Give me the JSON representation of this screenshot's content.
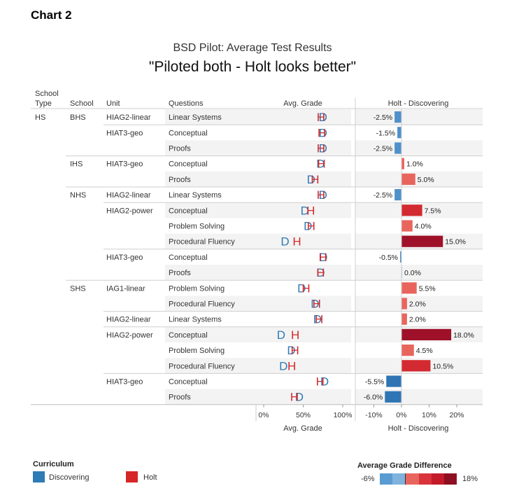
{
  "header": {
    "chart_label": "Chart 2",
    "title": "BSD Pilot: Average Test Results",
    "subtitle": "\"Piloted both - Holt looks better\""
  },
  "columns": {
    "school_type_line1": "School",
    "school_type_line2": "Type",
    "school": "School",
    "unit": "Unit",
    "questions": "Questions",
    "avg_grade": "Avg. Grade",
    "diff": "Holt - Discovering"
  },
  "legend": {
    "curriculum_title": "Curriculum",
    "discovering_label": "Discovering",
    "holt_label": "Holt",
    "discovering_color": "#2e7bb5",
    "holt_color": "#d62728",
    "diff_title": "Average Grade Difference",
    "diff_min_label": "-6%",
    "diff_max_label": "18%"
  },
  "chart_data": {
    "type": "table",
    "marker_letters": {
      "discovering": "D",
      "holt": "H"
    },
    "avg_grade_axis": {
      "ticks": [
        "0%",
        "50%",
        "100%"
      ],
      "range": [
        0,
        100
      ],
      "label": "Avg. Grade"
    },
    "diff_axis": {
      "ticks": [
        "-10%",
        "0%",
        "10%",
        "20%"
      ],
      "range": [
        -12,
        22
      ],
      "label": "Holt - Discovering"
    },
    "rows": [
      {
        "school_type": "HS",
        "school": "BHS",
        "unit": "HIAG2-linear",
        "question": "Linear Systems",
        "discovering": 75,
        "holt": 72.5,
        "diff": -2.5,
        "diff_label": "-2.5%"
      },
      {
        "school_type": "",
        "school": "",
        "unit": "HIAT3-geo",
        "question": "Conceptual",
        "discovering": 75,
        "holt": 73.5,
        "diff": -1.5,
        "diff_label": "-1.5%"
      },
      {
        "school_type": "",
        "school": "",
        "unit": "",
        "question": "Proofs",
        "discovering": 75,
        "holt": 72.5,
        "diff": -2.5,
        "diff_label": "-2.5%"
      },
      {
        "school_type": "",
        "school": "IHS",
        "unit": "HIAT3-geo",
        "question": "Conceptual",
        "discovering": 72,
        "holt": 73,
        "diff": 1.0,
        "diff_label": "1.0%"
      },
      {
        "school_type": "",
        "school": "",
        "unit": "",
        "question": "Proofs",
        "discovering": 60,
        "holt": 65,
        "diff": 5.0,
        "diff_label": "5.0%"
      },
      {
        "school_type": "",
        "school": "NHS",
        "unit": "HIAG2-linear",
        "question": "Linear Systems",
        "discovering": 75,
        "holt": 72.5,
        "diff": -2.5,
        "diff_label": "-2.5%"
      },
      {
        "school_type": "",
        "school": "",
        "unit": "HIAG2-power",
        "question": "Conceptual",
        "discovering": 52,
        "holt": 59.5,
        "diff": 7.5,
        "diff_label": "7.5%"
      },
      {
        "school_type": "",
        "school": "",
        "unit": "",
        "question": "Problem Solving",
        "discovering": 56,
        "holt": 60,
        "diff": 4.0,
        "diff_label": "4.0%"
      },
      {
        "school_type": "",
        "school": "",
        "unit": "",
        "question": "Procedural Fluency",
        "discovering": 27,
        "holt": 42,
        "diff": 15.0,
        "diff_label": "15.0%"
      },
      {
        "school_type": "",
        "school": "",
        "unit": "HIAT3-geo",
        "question": "Conceptual",
        "discovering": 75.5,
        "holt": 75,
        "diff": -0.5,
        "diff_label": "-0.5%"
      },
      {
        "school_type": "",
        "school": "",
        "unit": "",
        "question": "Proofs",
        "discovering": 72,
        "holt": 72,
        "diff": 0.0,
        "diff_label": "0.0%"
      },
      {
        "school_type": "",
        "school": "SHS",
        "unit": "IAG1-linear",
        "question": "Problem Solving",
        "discovering": 48,
        "holt": 53.5,
        "diff": 5.5,
        "diff_label": "5.5%"
      },
      {
        "school_type": "",
        "school": "",
        "unit": "",
        "question": "Procedural Fluency",
        "discovering": 65,
        "holt": 67,
        "diff": 2.0,
        "diff_label": "2.0%"
      },
      {
        "school_type": "",
        "school": "",
        "unit": "HIAG2-linear",
        "question": "Linear Systems",
        "discovering": 68,
        "holt": 70,
        "diff": 2.0,
        "diff_label": "2.0%"
      },
      {
        "school_type": "",
        "school": "",
        "unit": "HIAG2-power",
        "question": "Conceptual",
        "discovering": 22,
        "holt": 40,
        "diff": 18.0,
        "diff_label": "18.0%"
      },
      {
        "school_type": "",
        "school": "",
        "unit": "",
        "question": "Problem Solving",
        "discovering": 35,
        "holt": 39.5,
        "diff": 4.5,
        "diff_label": "4.5%"
      },
      {
        "school_type": "",
        "school": "",
        "unit": "",
        "question": "Procedural Fluency",
        "discovering": 25,
        "holt": 35.5,
        "diff": 10.5,
        "diff_label": "10.5%"
      },
      {
        "school_type": "",
        "school": "",
        "unit": "HIAT3-geo",
        "question": "Conceptual",
        "discovering": 77,
        "holt": 71.5,
        "diff": -5.5,
        "diff_label": "-5.5%"
      },
      {
        "school_type": "",
        "school": "",
        "unit": "",
        "question": "Proofs",
        "discovering": 45,
        "holt": 39,
        "diff": -6.0,
        "diff_label": "-6.0%"
      }
    ]
  }
}
